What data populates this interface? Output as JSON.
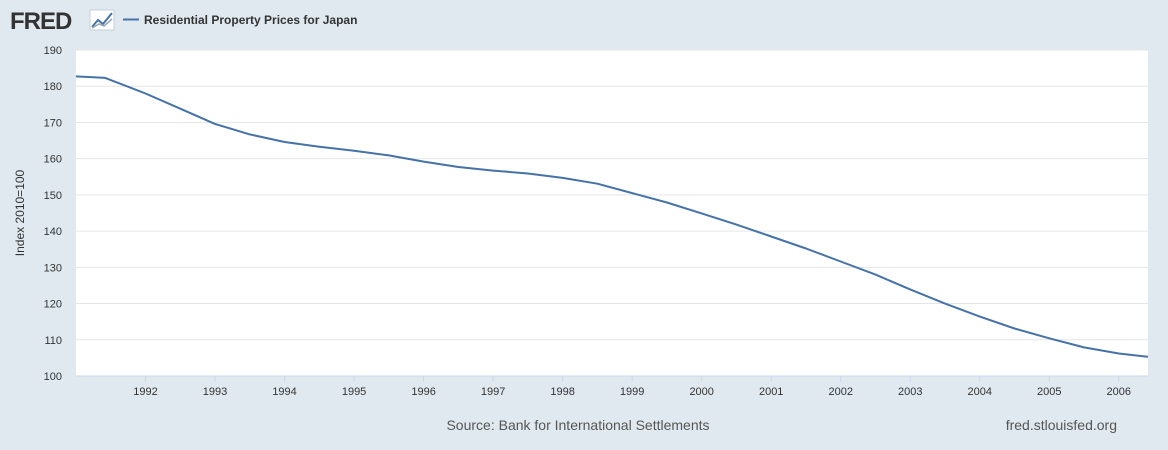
{
  "header": {
    "logo_text": "FRED",
    "legend_label": "Residential Property Prices for Japan"
  },
  "colors": {
    "background": "#e1e9f0",
    "plot_background": "#ffffff",
    "series_line": "#4572a7",
    "grid": "#e6e6e6",
    "text": "#333333",
    "footer_text": "#555555"
  },
  "footer": {
    "source": "Source: Bank for International Settlements",
    "site": "fred.stlouisfed.org"
  },
  "chart_data": {
    "type": "line",
    "title": "Residential Property Prices for Japan",
    "xlabel": "",
    "ylabel": "Index 2010=100",
    "xlim": [
      1991.0,
      2006.42
    ],
    "ylim": [
      100,
      190
    ],
    "yticks": [
      100,
      110,
      120,
      130,
      140,
      150,
      160,
      170,
      180,
      190
    ],
    "xticks": [
      1992,
      1993,
      1994,
      1995,
      1996,
      1997,
      1998,
      1999,
      2000,
      2001,
      2002,
      2003,
      2004,
      2005,
      2006
    ],
    "grid": true,
    "legend": "top-left",
    "series": [
      {
        "name": "Residential Property Prices for Japan",
        "x": [
          1991.0,
          1991.42,
          1992.0,
          1992.5,
          1993.0,
          1993.5,
          1994.0,
          1994.5,
          1995.0,
          1995.5,
          1996.0,
          1996.5,
          1997.0,
          1997.5,
          1998.0,
          1998.5,
          1999.0,
          1999.5,
          2000.0,
          2000.5,
          2001.0,
          2001.5,
          2002.0,
          2002.5,
          2003.0,
          2003.5,
          2004.0,
          2004.5,
          2005.0,
          2005.5,
          2006.0,
          2006.42
        ],
        "values": [
          182.7,
          182.3,
          178.0,
          173.8,
          169.6,
          166.7,
          164.6,
          163.3,
          162.2,
          160.9,
          159.2,
          157.7,
          156.7,
          155.9,
          154.7,
          153.1,
          150.5,
          147.9,
          144.9,
          141.8,
          138.5,
          135.2,
          131.6,
          128.0,
          123.9,
          120.0,
          116.4,
          113.1,
          110.4,
          107.9,
          106.2,
          105.3
        ]
      }
    ]
  }
}
